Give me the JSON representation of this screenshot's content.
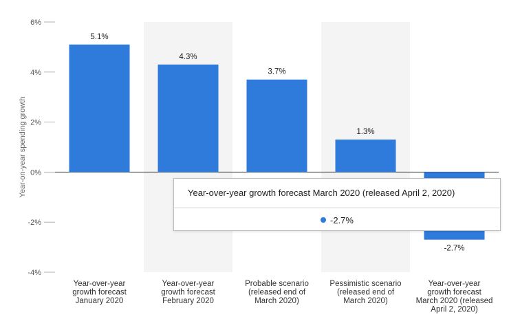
{
  "chart_data": {
    "type": "bar",
    "categories": [
      [
        "Year-over-year",
        "growth forecast",
        "January 2020"
      ],
      [
        "Year-over-year",
        "growth forecast",
        "February 2020"
      ],
      [
        "Probable scenario",
        "(released end of",
        "March 2020)"
      ],
      [
        "Pessimistic scenario",
        "(released end of",
        "March 2020)"
      ],
      [
        "Year-over-year",
        "growth forecast",
        "March 2020 (released",
        "April 2, 2020)"
      ]
    ],
    "values": [
      5.1,
      4.3,
      3.7,
      1.3,
      -2.7
    ],
    "data_labels": [
      "5.1%",
      "4.3%",
      "3.7%",
      "1.3%",
      "-2.7%"
    ],
    "ylabel": "Year-on-year spending growth",
    "ylim": [
      -4,
      6
    ],
    "yticks": [
      6,
      4,
      2,
      0,
      -2,
      -4
    ],
    "ytick_labels": [
      "6%",
      "4%",
      "2%",
      "0%",
      "-2%",
      "-4%"
    ],
    "grid": false,
    "bar_color": "#2f7bdc",
    "band_color": "#f4f4f4",
    "shaded_bands": [
      1,
      3
    ]
  },
  "tooltip": {
    "title": "Year-over-year growth forecast March 2020 (released April 2, 2020)",
    "value": "-2.7%",
    "dot_color": "#2f7bdc"
  }
}
